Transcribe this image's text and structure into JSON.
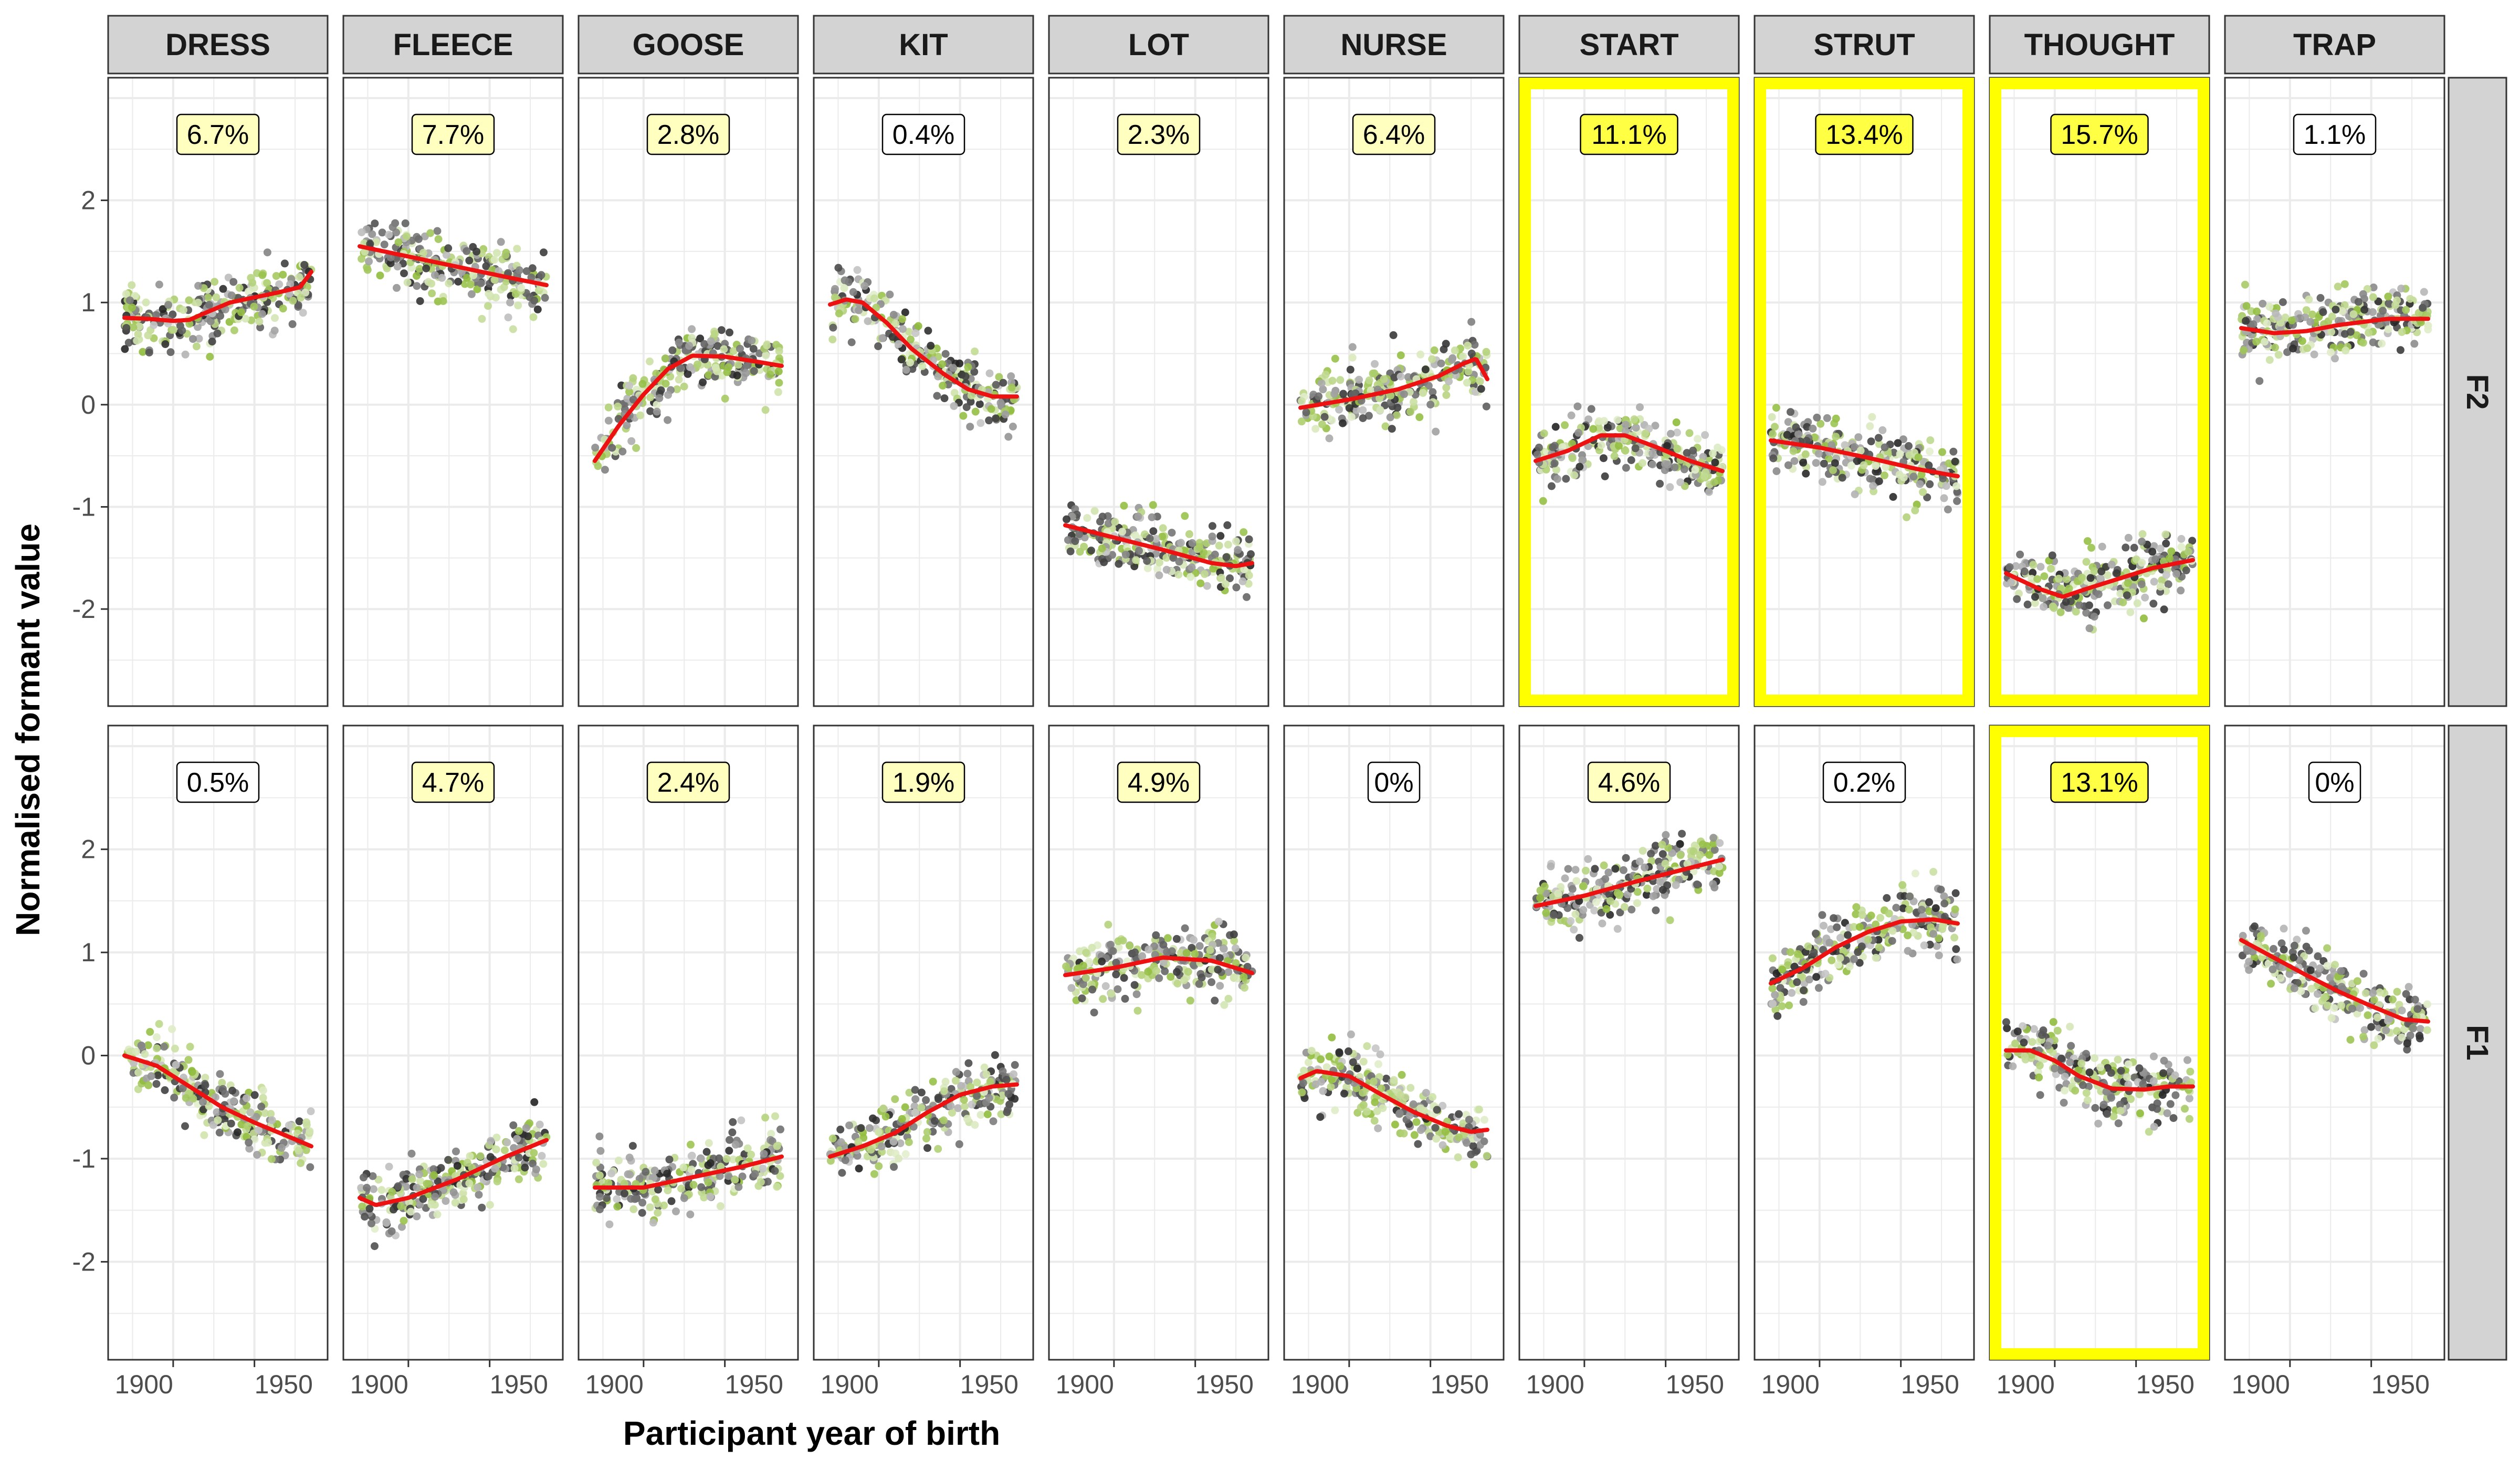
{
  "chart_data": {
    "type": "scatter",
    "title": "",
    "xlabel": "Participant year of birth",
    "ylabel": "Normalised formant value",
    "x_ticks": [
      1900,
      1950
    ],
    "x_range": [
      1860,
      1995
    ],
    "y_ticks": [
      -2,
      -1,
      0,
      1,
      2
    ],
    "ylim": [
      -2.95,
      3.2
    ],
    "grid": true,
    "columns": [
      "DRESS",
      "FLEECE",
      "GOOSE",
      "KIT",
      "LOT",
      "NURSE",
      "START",
      "STRUT",
      "THOUGHT",
      "TRAP"
    ],
    "rows": [
      "F2",
      "F1"
    ],
    "colors": {
      "smooth_line": "#ee1111",
      "highlight_border": "#ffff00",
      "label_high": "#ffff44",
      "label_mid": "#ffffc0",
      "label_none": "#ffffff",
      "strip_fill": "#d3d3d3",
      "point_green": "#8fbc3a",
      "point_dark": "#222222"
    },
    "panels": [
      {
        "row": "F2",
        "column": "DRESS",
        "label": "6.7%",
        "highlight": false,
        "label_level": "mid",
        "smooth": [
          [
            1870,
            0.85
          ],
          [
            1885,
            0.84
          ],
          [
            1900,
            0.82
          ],
          [
            1910,
            0.83
          ],
          [
            1920,
            0.9
          ],
          [
            1935,
            1.0
          ],
          [
            1950,
            1.05
          ],
          [
            1965,
            1.1
          ],
          [
            1978,
            1.15
          ],
          [
            1985,
            1.3
          ]
        ]
      },
      {
        "row": "F2",
        "column": "FLEECE",
        "label": "7.7%",
        "highlight": false,
        "label_level": "mid",
        "smooth": [
          [
            1870,
            1.55
          ],
          [
            1900,
            1.45
          ],
          [
            1930,
            1.35
          ],
          [
            1960,
            1.25
          ],
          [
            1985,
            1.17
          ]
        ]
      },
      {
        "row": "F2",
        "column": "GOOSE",
        "label": "2.8%",
        "highlight": false,
        "label_level": "mid",
        "smooth": [
          [
            1870,
            -0.55
          ],
          [
            1885,
            -0.2
          ],
          [
            1900,
            0.1
          ],
          [
            1915,
            0.35
          ],
          [
            1930,
            0.48
          ],
          [
            1950,
            0.47
          ],
          [
            1970,
            0.42
          ],
          [
            1985,
            0.38
          ]
        ]
      },
      {
        "row": "F2",
        "column": "KIT",
        "label": "0.4%",
        "highlight": false,
        "label_level": "none",
        "smooth": [
          [
            1870,
            0.98
          ],
          [
            1880,
            1.03
          ],
          [
            1890,
            1.0
          ],
          [
            1905,
            0.8
          ],
          [
            1920,
            0.55
          ],
          [
            1940,
            0.3
          ],
          [
            1955,
            0.15
          ],
          [
            1970,
            0.08
          ],
          [
            1985,
            0.08
          ]
        ]
      },
      {
        "row": "F2",
        "column": "LOT",
        "label": "2.3%",
        "highlight": false,
        "label_level": "mid",
        "smooth": [
          [
            1870,
            -1.18
          ],
          [
            1900,
            -1.3
          ],
          [
            1930,
            -1.42
          ],
          [
            1960,
            -1.55
          ],
          [
            1975,
            -1.58
          ],
          [
            1985,
            -1.55
          ]
        ]
      },
      {
        "row": "F2",
        "column": "NURSE",
        "label": "6.4%",
        "highlight": false,
        "label_level": "mid",
        "smooth": [
          [
            1870,
            -0.03
          ],
          [
            1900,
            0.05
          ],
          [
            1930,
            0.15
          ],
          [
            1955,
            0.28
          ],
          [
            1970,
            0.4
          ],
          [
            1978,
            0.45
          ],
          [
            1985,
            0.25
          ]
        ]
      },
      {
        "row": "F2",
        "column": "START",
        "label": "11.1%",
        "highlight": true,
        "label_level": "high",
        "smooth": [
          [
            1870,
            -0.55
          ],
          [
            1890,
            -0.45
          ],
          [
            1910,
            -0.3
          ],
          [
            1925,
            -0.3
          ],
          [
            1945,
            -0.42
          ],
          [
            1965,
            -0.55
          ],
          [
            1985,
            -0.65
          ]
        ]
      },
      {
        "row": "F2",
        "column": "STRUT",
        "label": "13.4%",
        "highlight": true,
        "label_level": "high",
        "smooth": [
          [
            1870,
            -0.35
          ],
          [
            1900,
            -0.42
          ],
          [
            1930,
            -0.52
          ],
          [
            1960,
            -0.63
          ],
          [
            1985,
            -0.7
          ]
        ]
      },
      {
        "row": "F2",
        "column": "THOUGHT",
        "label": "15.7%",
        "highlight": true,
        "label_level": "high",
        "smooth": [
          [
            1870,
            -1.65
          ],
          [
            1890,
            -1.8
          ],
          [
            1905,
            -1.88
          ],
          [
            1920,
            -1.8
          ],
          [
            1940,
            -1.7
          ],
          [
            1960,
            -1.6
          ],
          [
            1985,
            -1.52
          ]
        ]
      },
      {
        "row": "F2",
        "column": "TRAP",
        "label": "1.1%",
        "highlight": false,
        "label_level": "none",
        "smooth": [
          [
            1870,
            0.75
          ],
          [
            1890,
            0.7
          ],
          [
            1910,
            0.72
          ],
          [
            1930,
            0.78
          ],
          [
            1960,
            0.84
          ],
          [
            1985,
            0.84
          ]
        ]
      },
      {
        "row": "F1",
        "column": "DRESS",
        "label": "0.5%",
        "highlight": false,
        "label_level": "none",
        "smooth": [
          [
            1870,
            0.0
          ],
          [
            1890,
            -0.1
          ],
          [
            1910,
            -0.3
          ],
          [
            1930,
            -0.5
          ],
          [
            1950,
            -0.65
          ],
          [
            1970,
            -0.78
          ],
          [
            1985,
            -0.88
          ]
        ]
      },
      {
        "row": "F1",
        "column": "FLEECE",
        "label": "4.7%",
        "highlight": false,
        "label_level": "mid",
        "smooth": [
          [
            1870,
            -1.38
          ],
          [
            1880,
            -1.45
          ],
          [
            1900,
            -1.38
          ],
          [
            1930,
            -1.2
          ],
          [
            1960,
            -0.98
          ],
          [
            1985,
            -0.82
          ]
        ]
      },
      {
        "row": "F1",
        "column": "GOOSE",
        "label": "2.4%",
        "highlight": false,
        "label_level": "mid",
        "smooth": [
          [
            1870,
            -1.28
          ],
          [
            1900,
            -1.28
          ],
          [
            1930,
            -1.18
          ],
          [
            1960,
            -1.08
          ],
          [
            1985,
            -0.98
          ]
        ]
      },
      {
        "row": "F1",
        "column": "KIT",
        "label": "1.9%",
        "highlight": false,
        "label_level": "mid",
        "smooth": [
          [
            1870,
            -0.98
          ],
          [
            1890,
            -0.88
          ],
          [
            1910,
            -0.75
          ],
          [
            1930,
            -0.55
          ],
          [
            1950,
            -0.38
          ],
          [
            1970,
            -0.3
          ],
          [
            1985,
            -0.28
          ]
        ]
      },
      {
        "row": "F1",
        "column": "LOT",
        "label": "4.9%",
        "highlight": false,
        "label_level": "mid",
        "smooth": [
          [
            1870,
            0.78
          ],
          [
            1900,
            0.85
          ],
          [
            1930,
            0.95
          ],
          [
            1960,
            0.92
          ],
          [
            1985,
            0.8
          ]
        ]
      },
      {
        "row": "F1",
        "column": "NURSE",
        "label": "0%",
        "highlight": false,
        "label_level": "none",
        "smooth": [
          [
            1870,
            -0.22
          ],
          [
            1880,
            -0.15
          ],
          [
            1900,
            -0.2
          ],
          [
            1920,
            -0.38
          ],
          [
            1940,
            -0.55
          ],
          [
            1960,
            -0.68
          ],
          [
            1975,
            -0.74
          ],
          [
            1985,
            -0.72
          ]
        ]
      },
      {
        "row": "F1",
        "column": "START",
        "label": "4.6%",
        "highlight": false,
        "label_level": "mid",
        "smooth": [
          [
            1870,
            1.45
          ],
          [
            1900,
            1.55
          ],
          [
            1930,
            1.68
          ],
          [
            1960,
            1.8
          ],
          [
            1985,
            1.9
          ]
        ]
      },
      {
        "row": "F1",
        "column": "STRUT",
        "label": "0.2%",
        "highlight": false,
        "label_level": "none",
        "smooth": [
          [
            1870,
            0.7
          ],
          [
            1890,
            0.85
          ],
          [
            1910,
            1.05
          ],
          [
            1930,
            1.2
          ],
          [
            1950,
            1.3
          ],
          [
            1970,
            1.32
          ],
          [
            1985,
            1.28
          ]
        ]
      },
      {
        "row": "F1",
        "column": "THOUGHT",
        "label": "13.1%",
        "highlight": true,
        "label_level": "high",
        "smooth": [
          [
            1870,
            0.05
          ],
          [
            1885,
            0.05
          ],
          [
            1900,
            -0.05
          ],
          [
            1915,
            -0.2
          ],
          [
            1935,
            -0.32
          ],
          [
            1955,
            -0.33
          ],
          [
            1970,
            -0.3
          ],
          [
            1985,
            -0.3
          ]
        ]
      },
      {
        "row": "F1",
        "column": "TRAP",
        "label": "0%",
        "highlight": false,
        "label_level": "none",
        "smooth": [
          [
            1870,
            1.12
          ],
          [
            1890,
            0.95
          ],
          [
            1910,
            0.78
          ],
          [
            1930,
            0.62
          ],
          [
            1950,
            0.48
          ],
          [
            1970,
            0.35
          ],
          [
            1985,
            0.33
          ]
        ]
      }
    ]
  }
}
